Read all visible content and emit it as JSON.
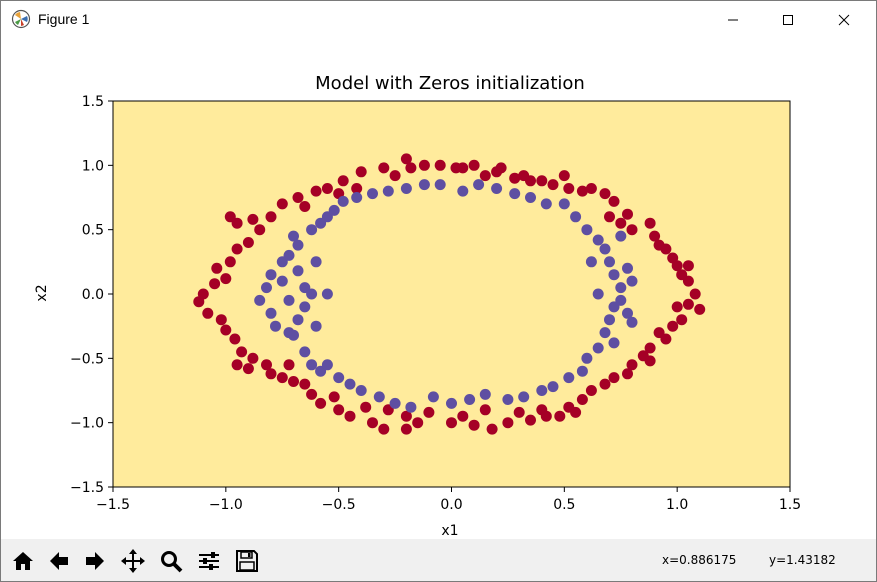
{
  "window": {
    "title": "Figure 1",
    "app_icon": "matplotlib-icon",
    "controls": [
      "minimize-icon",
      "maximize-icon",
      "close-icon"
    ]
  },
  "toolbar": {
    "buttons": [
      "home-icon",
      "back-arrow-icon",
      "forward-arrow-icon",
      "pan-icon",
      "zoom-icon",
      "configure-subplots-icon",
      "save-icon"
    ],
    "x_readout": "x=0.886175",
    "y_readout": "y=1.43182"
  },
  "colors": {
    "background_fill": "#ffeb9c",
    "class_0": "#a50026",
    "class_1": "#5e4fa2"
  },
  "chart_data": {
    "type": "scatter",
    "title": "Model with Zeros initialization",
    "xlabel": "x1",
    "ylabel": "x2",
    "xlim": [
      -1.5,
      1.5
    ],
    "ylim": [
      -1.5,
      1.5
    ],
    "xticks": [
      -1.5,
      -1.0,
      -0.5,
      0.0,
      0.5,
      1.0,
      1.5
    ],
    "yticks": [
      -1.5,
      -1.0,
      -0.5,
      0.0,
      0.5,
      1.0,
      1.5
    ],
    "xtick_labels": [
      "−1.5",
      "−1.0",
      "−0.5",
      "0.0",
      "0.5",
      "1.0",
      "1.5"
    ],
    "ytick_labels": [
      "−1.5",
      "−1.0",
      "−0.5",
      "0.0",
      "0.5",
      "1.0",
      "1.5"
    ],
    "grid": false,
    "legend": "none",
    "series": [
      {
        "color": "#a50026",
        "points": [
          [
            -1.1,
            0.0
          ],
          [
            -1.12,
            -0.06
          ],
          [
            -1.05,
            0.08
          ],
          [
            -1.08,
            -0.15
          ],
          [
            -1.02,
            -0.2
          ],
          [
            -1.0,
            0.12
          ],
          [
            -1.04,
            0.2
          ],
          [
            -0.98,
            0.25
          ],
          [
            -1.0,
            -0.28
          ],
          [
            -0.96,
            -0.35
          ],
          [
            -0.95,
            0.35
          ],
          [
            -0.9,
            0.4
          ],
          [
            -0.93,
            -0.45
          ],
          [
            -0.88,
            -0.5
          ],
          [
            -0.95,
            -0.55
          ],
          [
            -0.98,
            0.6
          ],
          [
            -0.95,
            0.55
          ],
          [
            -0.88,
            0.58
          ],
          [
            -0.85,
            0.5
          ],
          [
            -0.9,
            -0.58
          ],
          [
            -0.82,
            -0.55
          ],
          [
            -0.8,
            -0.62
          ],
          [
            -0.75,
            -0.65
          ],
          [
            -0.72,
            -0.55
          ],
          [
            -0.7,
            -0.68
          ],
          [
            -0.8,
            0.6
          ],
          [
            -0.75,
            0.7
          ],
          [
            -0.68,
            0.75
          ],
          [
            -0.65,
            0.68
          ],
          [
            -0.6,
            0.8
          ],
          [
            -0.65,
            -0.7
          ],
          [
            -0.62,
            -0.78
          ],
          [
            -0.58,
            -0.85
          ],
          [
            -0.52,
            -0.8
          ],
          [
            -0.5,
            -0.9
          ],
          [
            -0.55,
            0.82
          ],
          [
            -0.5,
            0.78
          ],
          [
            -0.48,
            0.88
          ],
          [
            -0.42,
            0.82
          ],
          [
            -0.4,
            0.95
          ],
          [
            -0.45,
            -0.95
          ],
          [
            -0.38,
            -0.88
          ],
          [
            -0.35,
            -1.0
          ],
          [
            -0.3,
            -1.05
          ],
          [
            -0.28,
            -0.9
          ],
          [
            -0.3,
            0.98
          ],
          [
            -0.25,
            0.92
          ],
          [
            -0.2,
            1.05
          ],
          [
            -0.18,
            0.98
          ],
          [
            -0.12,
            1.0
          ],
          [
            -0.2,
            -0.95
          ],
          [
            -0.15,
            -1.0
          ],
          [
            -0.2,
            -1.05
          ],
          [
            -0.1,
            -0.92
          ],
          [
            0.0,
            -1.0
          ],
          [
            -0.05,
            1.0
          ],
          [
            0.02,
            0.98
          ],
          [
            0.05,
            0.98
          ],
          [
            0.1,
            1.0
          ],
          [
            0.15,
            0.92
          ],
          [
            0.05,
            -0.95
          ],
          [
            0.1,
            -1.02
          ],
          [
            0.15,
            -0.9
          ],
          [
            0.18,
            -1.05
          ],
          [
            0.25,
            -1.0
          ],
          [
            0.2,
            0.95
          ],
          [
            0.22,
            0.98
          ],
          [
            0.28,
            0.9
          ],
          [
            0.32,
            0.92
          ],
          [
            0.35,
            0.88
          ],
          [
            0.3,
            -0.92
          ],
          [
            0.35,
            -0.98
          ],
          [
            0.4,
            -0.9
          ],
          [
            0.42,
            -0.95
          ],
          [
            0.48,
            -0.95
          ],
          [
            0.4,
            0.88
          ],
          [
            0.45,
            0.85
          ],
          [
            0.5,
            0.92
          ],
          [
            0.52,
            0.82
          ],
          [
            0.58,
            0.8
          ],
          [
            0.52,
            -0.88
          ],
          [
            0.55,
            -0.92
          ],
          [
            0.58,
            -0.82
          ],
          [
            0.62,
            -0.75
          ],
          [
            0.68,
            -0.7
          ],
          [
            0.62,
            0.82
          ],
          [
            0.68,
            0.78
          ],
          [
            0.72,
            0.72
          ],
          [
            0.7,
            0.6
          ],
          [
            0.78,
            0.62
          ],
          [
            0.72,
            -0.65
          ],
          [
            0.78,
            -0.62
          ],
          [
            0.8,
            -0.55
          ],
          [
            0.85,
            -0.48
          ],
          [
            0.88,
            -0.52
          ],
          [
            0.75,
            0.55
          ],
          [
            0.8,
            0.5
          ],
          [
            0.88,
            0.55
          ],
          [
            0.9,
            0.45
          ],
          [
            0.92,
            0.38
          ],
          [
            0.88,
            -0.42
          ],
          [
            0.92,
            -0.3
          ],
          [
            0.95,
            -0.35
          ],
          [
            0.98,
            -0.25
          ],
          [
            1.02,
            -0.2
          ],
          [
            0.95,
            0.35
          ],
          [
            0.98,
            0.28
          ],
          [
            1.0,
            0.22
          ],
          [
            1.02,
            0.15
          ],
          [
            1.05,
            0.22
          ],
          [
            1.0,
            -0.1
          ],
          [
            1.05,
            -0.08
          ],
          [
            1.08,
            0.0
          ],
          [
            1.1,
            -0.12
          ],
          [
            1.05,
            0.1
          ]
        ]
      },
      {
        "color": "#5e4fa2",
        "points": [
          [
            -0.85,
            -0.05
          ],
          [
            -0.82,
            0.05
          ],
          [
            -0.8,
            0.15
          ],
          [
            -0.8,
            -0.15
          ],
          [
            -0.78,
            -0.25
          ],
          [
            -0.75,
            0.1
          ],
          [
            -0.75,
            0.25
          ],
          [
            -0.72,
            -0.05
          ],
          [
            -0.72,
            -0.3
          ],
          [
            -0.72,
            0.3
          ],
          [
            -0.7,
            0.45
          ],
          [
            -0.68,
            0.18
          ],
          [
            -0.68,
            -0.2
          ],
          [
            -0.68,
            0.38
          ],
          [
            -0.65,
            -0.45
          ],
          [
            -0.65,
            0.05
          ],
          [
            -0.65,
            -0.1
          ],
          [
            -0.62,
            0.5
          ],
          [
            -0.62,
            -0.55
          ],
          [
            -0.6,
            0.25
          ],
          [
            -0.6,
            -0.25
          ],
          [
            -0.58,
            -0.6
          ],
          [
            -0.55,
            0.6
          ],
          [
            -0.55,
            0.0
          ],
          [
            -0.52,
            0.65
          ],
          [
            -0.5,
            -0.65
          ],
          [
            -0.48,
            0.72
          ],
          [
            -0.45,
            -0.7
          ],
          [
            -0.42,
            0.75
          ],
          [
            -0.4,
            -0.75
          ],
          [
            -0.35,
            0.78
          ],
          [
            -0.32,
            -0.8
          ],
          [
            -0.28,
            0.8
          ],
          [
            -0.25,
            -0.85
          ],
          [
            -0.2,
            0.82
          ],
          [
            -0.18,
            -0.88
          ],
          [
            -0.12,
            0.85
          ],
          [
            -0.08,
            -0.8
          ],
          [
            -0.05,
            0.85
          ],
          [
            0.0,
            -0.85
          ],
          [
            0.05,
            0.8
          ],
          [
            0.08,
            -0.82
          ],
          [
            0.12,
            0.85
          ],
          [
            0.15,
            -0.78
          ],
          [
            0.2,
            0.82
          ],
          [
            0.25,
            -0.82
          ],
          [
            0.28,
            0.78
          ],
          [
            0.32,
            -0.8
          ],
          [
            0.35,
            0.75
          ],
          [
            0.4,
            -0.75
          ],
          [
            0.42,
            0.7
          ],
          [
            0.45,
            -0.72
          ],
          [
            0.5,
            0.7
          ],
          [
            0.52,
            -0.65
          ],
          [
            0.55,
            0.6
          ],
          [
            0.58,
            -0.6
          ],
          [
            0.6,
            0.5
          ],
          [
            0.6,
            -0.5
          ],
          [
            0.65,
            0.42
          ],
          [
            0.65,
            -0.42
          ],
          [
            0.68,
            0.35
          ],
          [
            0.68,
            -0.3
          ],
          [
            0.7,
            0.25
          ],
          [
            0.7,
            -0.2
          ],
          [
            0.72,
            0.15
          ],
          [
            0.72,
            -0.1
          ],
          [
            0.75,
            0.05
          ],
          [
            0.75,
            -0.05
          ],
          [
            0.78,
            0.2
          ],
          [
            0.78,
            -0.15
          ],
          [
            0.8,
            0.1
          ],
          [
            0.8,
            -0.22
          ],
          [
            0.75,
            0.45
          ],
          [
            0.72,
            -0.38
          ],
          [
            -0.58,
            0.55
          ],
          [
            -0.55,
            -0.55
          ],
          [
            -0.62,
            0.0
          ],
          [
            0.65,
            0.0
          ],
          [
            0.62,
            0.25
          ],
          [
            -0.7,
            -0.32
          ]
        ]
      }
    ]
  }
}
